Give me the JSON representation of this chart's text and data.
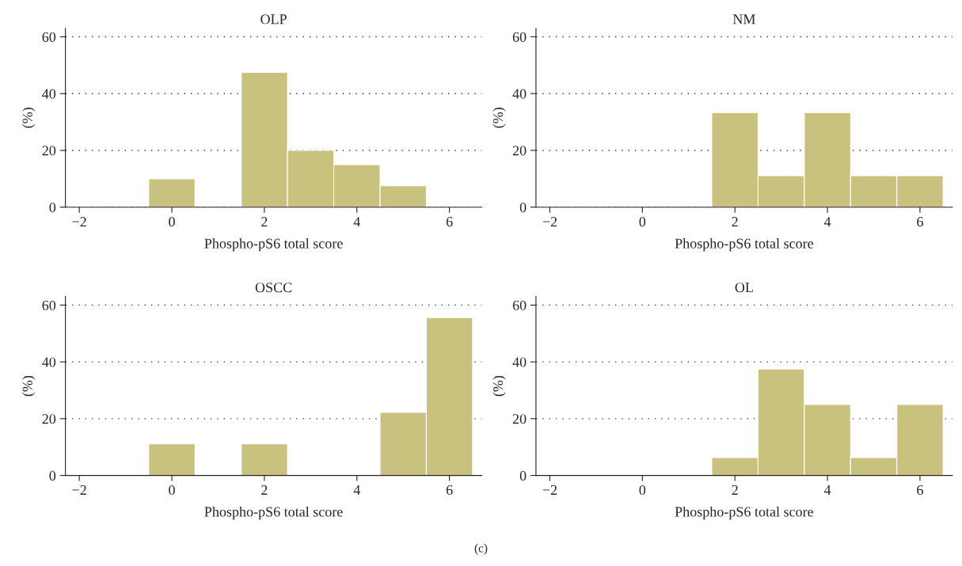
{
  "chart_data": [
    {
      "type": "histogram",
      "title": "OLP",
      "xlabel": "Phospho-pS6 total score",
      "ylabel": "(%)",
      "bins": [
        -0.5,
        0.5,
        1.5,
        2.5,
        3.5,
        4.5,
        5.5
      ],
      "values": [
        10,
        0,
        47.5,
        20,
        15,
        7.5
      ],
      "color": "#c9c27e",
      "xlim": [
        -2.3,
        6.7
      ],
      "xticks": [
        -2,
        0,
        2,
        4,
        6
      ],
      "ylim": [
        0,
        63
      ],
      "yticks": [
        0,
        20,
        40,
        60
      ],
      "grid": "y"
    },
    {
      "type": "histogram",
      "title": "NM",
      "xlabel": "Phospho-pS6 total score",
      "ylabel": "(%)",
      "bins": [
        1.5,
        2.5,
        3.5,
        4.5,
        5.5,
        6.5
      ],
      "values": [
        33.3,
        11.1,
        33.3,
        11.1,
        11.1
      ],
      "color": "#c9c27e",
      "xlim": [
        -2.3,
        6.7
      ],
      "xticks": [
        -2,
        0,
        2,
        4,
        6
      ],
      "ylim": [
        0,
        63
      ],
      "yticks": [
        0,
        20,
        40,
        60
      ],
      "grid": "y"
    },
    {
      "type": "histogram",
      "title": "OSCC",
      "xlabel": "Phospho-pS6 total score",
      "ylabel": "(%)",
      "bins": [
        -0.5,
        0.5,
        1.5,
        2.5,
        3.5,
        4.5,
        5.5,
        6.5
      ],
      "values": [
        11.1,
        0,
        11.1,
        0,
        0,
        22.2,
        55.6
      ],
      "color": "#c9c27e",
      "xlim": [
        -2.3,
        6.7
      ],
      "xticks": [
        -2,
        0,
        2,
        4,
        6
      ],
      "ylim": [
        0,
        63
      ],
      "yticks": [
        0,
        20,
        40,
        60
      ],
      "grid": "y",
      "annotations": [
        "(c)"
      ]
    },
    {
      "type": "histogram",
      "title": "OL",
      "xlabel": "Phospho-pS6 total score",
      "ylabel": "(%)",
      "bins": [
        1.5,
        2.5,
        3.5,
        4.5,
        5.5,
        6.5
      ],
      "values": [
        6.3,
        37.5,
        25,
        6.3,
        25
      ],
      "color": "#c9c27e",
      "xlim": [
        -2.3,
        6.7
      ],
      "xticks": [
        -2,
        0,
        2,
        4,
        6
      ],
      "ylim": [
        0,
        63
      ],
      "yticks": [
        0,
        20,
        40,
        60
      ],
      "grid": "y"
    }
  ]
}
